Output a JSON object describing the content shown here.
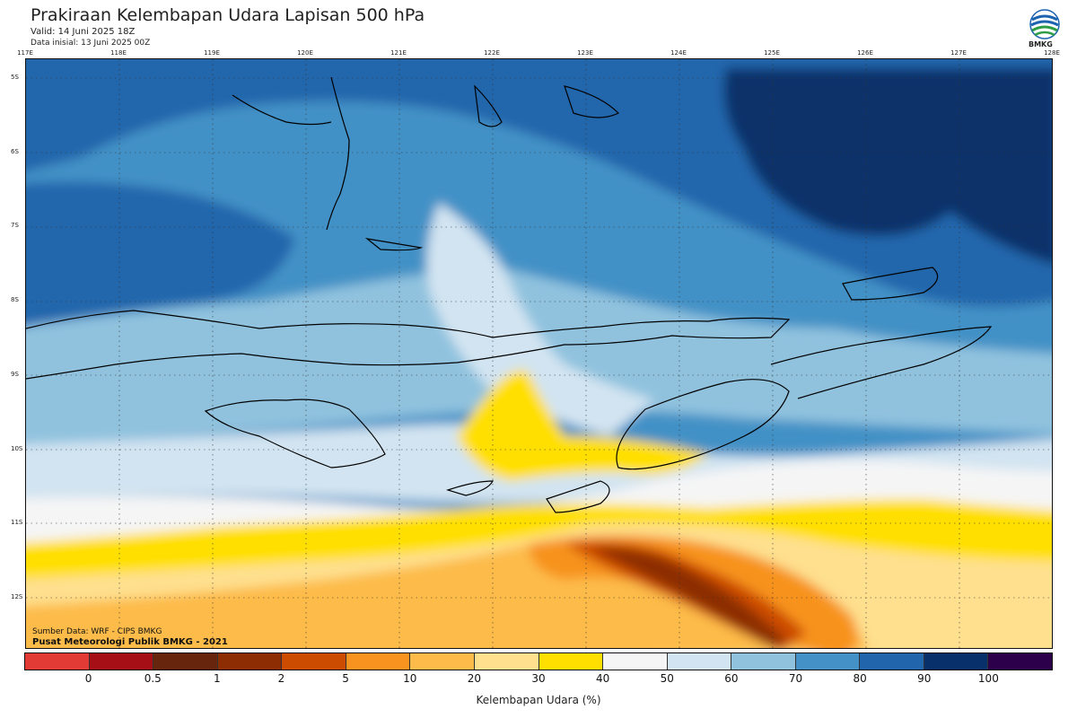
{
  "header": {
    "title": "Prakiraan Kelembapan Udara Lapisan 500 hPa",
    "valid": "Valid: 14 Juni 2025 18Z",
    "init": "Data inisial: 13 Juni 2025 00Z"
  },
  "logo": {
    "text": "BMKG",
    "icon": "bmkg-logo-icon"
  },
  "axes": {
    "longitudes": [
      "117E",
      "118E",
      "119E",
      "120E",
      "121E",
      "122E",
      "123E",
      "124E",
      "125E",
      "126E",
      "127E",
      "128E"
    ],
    "latitudes": [
      "5S",
      "6S",
      "7S",
      "8S",
      "9S",
      "10S",
      "11S",
      "12S"
    ]
  },
  "credits": {
    "source": "Sumber Data: WRF - CIPS BMKG",
    "center": "Pusat Meteorologi Publik BMKG - 2021"
  },
  "legend": {
    "title": "Kelembapan Udara (%)",
    "colors": [
      "#e23b35",
      "#a50f15",
      "#67250e",
      "#8c2d04",
      "#cc4c02",
      "#f7931e",
      "#fdbb4a",
      "#fee08f",
      "#ffdf00",
      "#f5f5f5",
      "#d2e4f1",
      "#90c2de",
      "#4391c6",
      "#2166ac",
      "#08306b",
      "#2d004b"
    ],
    "labels": [
      "0",
      "0.5",
      "1",
      "2",
      "5",
      "10",
      "20",
      "30",
      "40",
      "50",
      "60",
      "70",
      "80",
      "90",
      "100"
    ]
  }
}
